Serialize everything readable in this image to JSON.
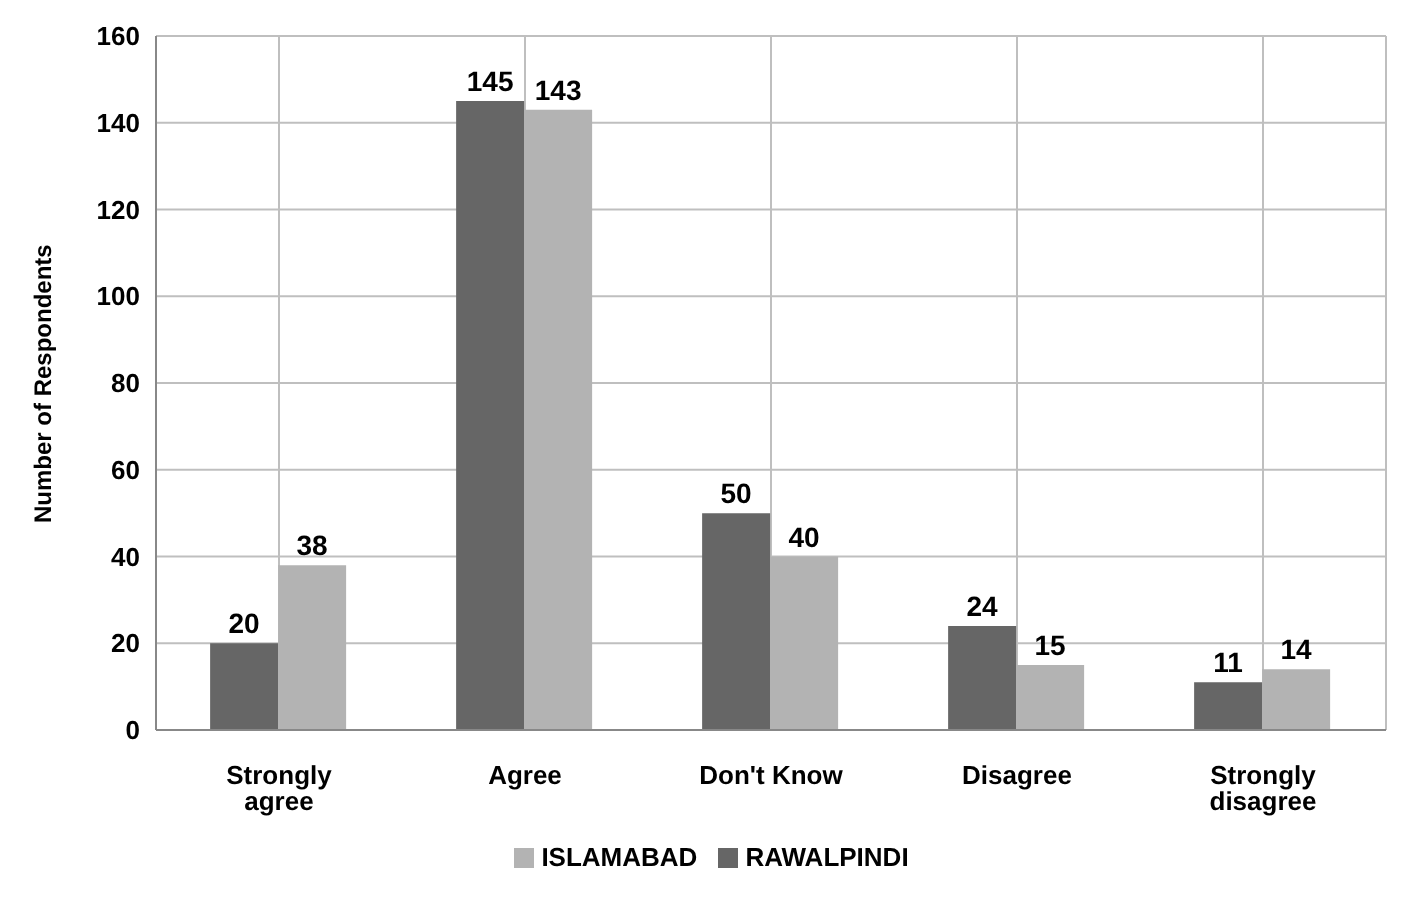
{
  "chart_data": {
    "type": "bar",
    "ylabel": "Number of Respondents",
    "categories": [
      "Strongly agree",
      "Agree",
      "Don't Know",
      "Disagree",
      "Strongly disagree"
    ],
    "series": [
      {
        "name": "RAWALPINDI",
        "color": "#666666",
        "values": [
          20,
          145,
          50,
          24,
          11
        ]
      },
      {
        "name": "ISLAMABAD",
        "color": "#b3b3b3",
        "values": [
          38,
          143,
          40,
          15,
          14
        ]
      }
    ],
    "ylim": [
      0,
      160
    ],
    "yticks": [
      0,
      20,
      40,
      60,
      80,
      100,
      120,
      140,
      160
    ],
    "grid": true,
    "legend": "bottom",
    "data_labels": true
  }
}
